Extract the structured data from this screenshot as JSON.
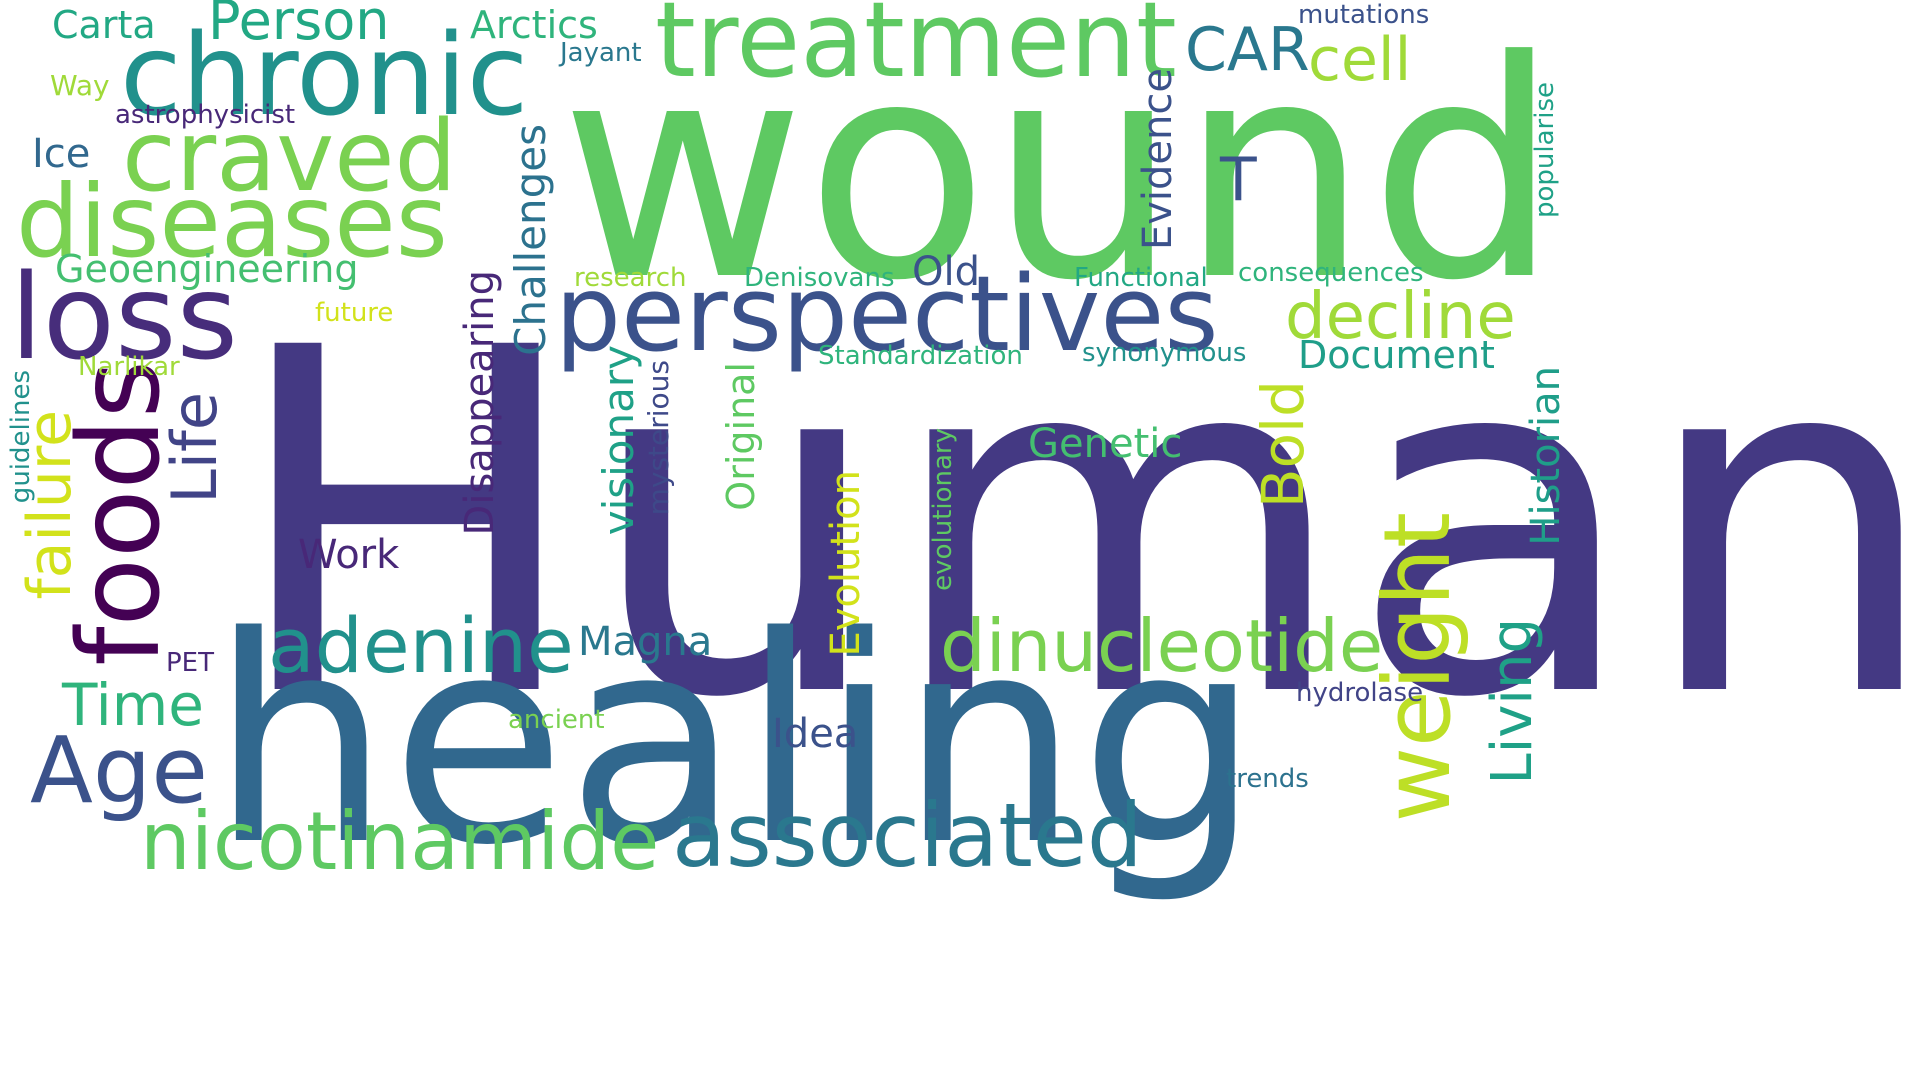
{
  "words": [
    {
      "text": "Human",
      "color": "#443983"
    },
    {
      "text": "wound",
      "color": "#5ec962"
    },
    {
      "text": "healing",
      "color": "#31688e"
    },
    {
      "text": "treatment",
      "color": "#5ec962"
    },
    {
      "text": "chronic",
      "color": "#21918c"
    },
    {
      "text": "perspectives",
      "color": "#3b528b"
    },
    {
      "text": "diseases",
      "color": "#7ad151"
    },
    {
      "text": "craved",
      "color": "#7ad151"
    },
    {
      "text": "loss",
      "color": "#472d7b"
    },
    {
      "text": "foods",
      "color": "#440154"
    },
    {
      "text": "associated",
      "color": "#2a788e"
    },
    {
      "text": "nicotinamide",
      "color": "#5ec962"
    },
    {
      "text": "adenine",
      "color": "#21918c"
    },
    {
      "text": "dinucleotide",
      "color": "#7ad151"
    },
    {
      "text": "weight",
      "color": "#bddf26"
    },
    {
      "text": "decline",
      "color": "#a0da39"
    },
    {
      "text": "Person",
      "color": "#22a884"
    },
    {
      "text": "CAR",
      "color": "#2a788e"
    },
    {
      "text": "cell",
      "color": "#a0da39"
    },
    {
      "text": "Age",
      "color": "#3b528b"
    },
    {
      "text": "Time",
      "color": "#2fb47c"
    },
    {
      "text": "Life",
      "color": "#414487"
    },
    {
      "text": "failure",
      "color": "#d2e21b"
    },
    {
      "text": "Living",
      "color": "#1fa187"
    },
    {
      "text": "Geoengineering",
      "color": "#44bf70"
    },
    {
      "text": "Carta",
      "color": "#22a884"
    },
    {
      "text": "Arctics",
      "color": "#2fb47c"
    },
    {
      "text": "Jayant",
      "color": "#2a788e"
    },
    {
      "text": "mutations",
      "color": "#3b528b"
    },
    {
      "text": "Way",
      "color": "#a0da39"
    },
    {
      "text": "astrophysicist",
      "color": "#482878"
    },
    {
      "text": "Ice",
      "color": "#31688e"
    },
    {
      "text": "T",
      "color": "#3b528b"
    },
    {
      "text": "Evidence",
      "color": "#3b528b"
    },
    {
      "text": "Challenges",
      "color": "#2c728e"
    },
    {
      "text": "Disappearing",
      "color": "#482878"
    },
    {
      "text": "visionary",
      "color": "#1fa187"
    },
    {
      "text": "mysterious",
      "color": "#3e4989"
    },
    {
      "text": "Original",
      "color": "#5ec962"
    },
    {
      "text": "Evolution",
      "color": "#d2e21b"
    },
    {
      "text": "evolutionary",
      "color": "#5ec962"
    },
    {
      "text": "research",
      "color": "#a0da39"
    },
    {
      "text": "Denisovans",
      "color": "#2fb47c"
    },
    {
      "text": "Old",
      "color": "#3b528b"
    },
    {
      "text": "Functional",
      "color": "#22a884"
    },
    {
      "text": "consequences",
      "color": "#2fb47c"
    },
    {
      "text": "popularise",
      "color": "#1fa187"
    },
    {
      "text": "future",
      "color": "#d2e21b"
    },
    {
      "text": "Narlikar",
      "color": "#a0da39"
    },
    {
      "text": "Standardization",
      "color": "#2fb47c"
    },
    {
      "text": "synonymous",
      "color": "#21918c"
    },
    {
      "text": "Document",
      "color": "#1f9e89"
    },
    {
      "text": "Historian",
      "color": "#1f9e89"
    },
    {
      "text": "guidelines",
      "color": "#21918c"
    },
    {
      "text": "Genetic",
      "color": "#44bf70"
    },
    {
      "text": "Bold",
      "color": "#bddf26"
    },
    {
      "text": "Work",
      "color": "#482878"
    },
    {
      "text": "Magna",
      "color": "#2a788e"
    },
    {
      "text": "PET",
      "color": "#482878"
    },
    {
      "text": "Idea",
      "color": "#3b528b"
    },
    {
      "text": "ancient",
      "color": "#7ad151"
    },
    {
      "text": "hydrolase",
      "color": "#414487"
    },
    {
      "text": "trends",
      "color": "#2c728e"
    }
  ]
}
